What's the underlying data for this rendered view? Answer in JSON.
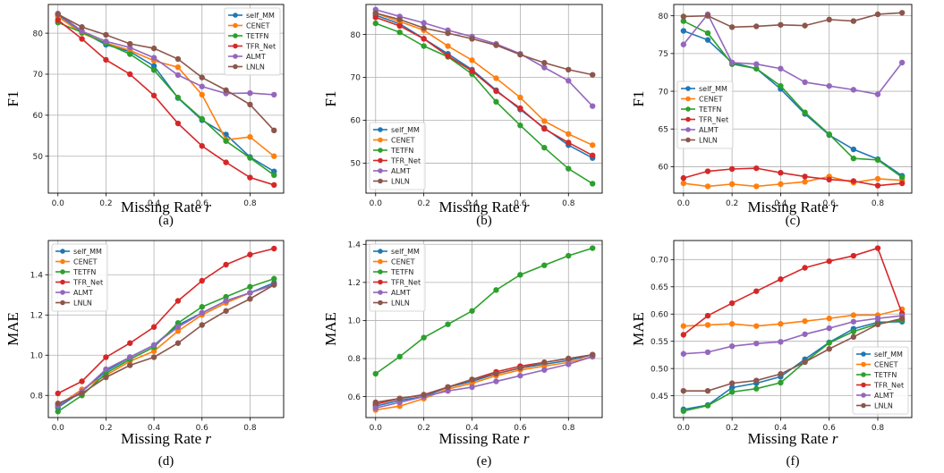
{
  "colors": {
    "self_MM": "#1f77b4",
    "CENET": "#ff7f0e",
    "TETFN": "#2ca02c",
    "TFR_Net": "#d62728",
    "ALMT": "#9467bd",
    "LNLN": "#8c564b"
  },
  "chart_data": [
    {
      "type": "line",
      "caption": "(a)",
      "xlabel": "Missing Rate",
      "xlabel_var": "r",
      "ylabel": "F1",
      "xlim": [
        -0.04,
        0.94
      ],
      "ylim": [
        41,
        87
      ],
      "xticks": [
        0.0,
        0.2,
        0.4,
        0.6,
        0.8
      ],
      "xtick_labels": [
        "0.0",
        "0.2",
        "0.4",
        "0.6",
        "0.8"
      ],
      "yticks": [
        50,
        60,
        70,
        80
      ],
      "ytick_labels": [
        "50",
        "60",
        "70",
        "80"
      ],
      "grid": true,
      "legend": "top-right",
      "x": [
        0.0,
        0.1,
        0.2,
        0.3,
        0.4,
        0.5,
        0.6,
        0.7,
        0.8,
        0.9
      ],
      "series": [
        {
          "name": "self_MM",
          "values": [
            84.5,
            80.3,
            77.2,
            75.5,
            72.0,
            64.2,
            58.8,
            55.3,
            49.8,
            46.3
          ]
        },
        {
          "name": "CENET",
          "values": [
            84.0,
            80.0,
            77.6,
            75.8,
            73.3,
            71.7,
            65.0,
            54.0,
            54.7,
            50.0
          ]
        },
        {
          "name": "TETFN",
          "values": [
            82.6,
            80.2,
            77.5,
            74.9,
            71.0,
            64.3,
            59.1,
            53.7,
            49.6,
            45.4
          ]
        },
        {
          "name": "TFR_Net",
          "values": [
            83.2,
            78.6,
            73.5,
            70.0,
            64.8,
            58.0,
            52.5,
            48.5,
            44.8,
            43.0
          ]
        },
        {
          "name": "ALMT",
          "values": [
            84.8,
            80.5,
            78.0,
            76.5,
            74.0,
            69.8,
            67.0,
            65.3,
            65.4,
            65.0
          ]
        },
        {
          "name": "LNLN",
          "values": [
            84.6,
            81.5,
            79.6,
            77.4,
            76.3,
            73.7,
            69.2,
            66.1,
            62.6,
            56.3
          ]
        }
      ]
    },
    {
      "type": "line",
      "caption": "(b)",
      "xlabel": "Missing Rate",
      "xlabel_var": "r",
      "ylabel": "F1",
      "xlim": [
        -0.04,
        0.94
      ],
      "ylim": [
        43,
        87
      ],
      "xticks": [
        0.0,
        0.2,
        0.4,
        0.6,
        0.8
      ],
      "xtick_labels": [
        "0.0",
        "0.2",
        "0.4",
        "0.6",
        "0.8"
      ],
      "yticks": [
        50,
        60,
        70,
        80
      ],
      "ytick_labels": [
        "50",
        "60",
        "70",
        "80"
      ],
      "grid": true,
      "legend": "bottom-left",
      "x": [
        0.0,
        0.1,
        0.2,
        0.3,
        0.4,
        0.5,
        0.6,
        0.7,
        0.8,
        0.9
      ],
      "series": [
        {
          "name": "self_MM",
          "values": [
            84.5,
            82.5,
            79.0,
            75.5,
            71.8,
            67.0,
            62.5,
            58.2,
            54.2,
            51.2
          ]
        },
        {
          "name": "CENET",
          "values": [
            85.0,
            83.0,
            81.0,
            77.3,
            74.0,
            69.8,
            65.3,
            59.8,
            56.8,
            54.2
          ]
        },
        {
          "name": "TETFN",
          "values": [
            82.6,
            80.5,
            77.3,
            74.8,
            70.8,
            64.3,
            58.8,
            53.6,
            48.7,
            45.2
          ]
        },
        {
          "name": "TFR_Net",
          "values": [
            84.0,
            82.0,
            79.0,
            75.0,
            71.5,
            66.8,
            62.8,
            58.0,
            54.8,
            51.8
          ]
        },
        {
          "name": "ALMT",
          "values": [
            85.8,
            84.2,
            82.7,
            81.0,
            79.5,
            77.8,
            75.5,
            72.3,
            69.2,
            63.3
          ]
        },
        {
          "name": "LNLN",
          "values": [
            85.0,
            83.5,
            81.5,
            80.3,
            79.0,
            77.5,
            75.3,
            73.4,
            71.8,
            70.6
          ]
        }
      ]
    },
    {
      "type": "line",
      "caption": "(c)",
      "xlabel": "Missing Rate",
      "xlabel_var": "r",
      "ylabel": "F1",
      "xlim": [
        -0.04,
        0.94
      ],
      "ylim": [
        56.5,
        81.5
      ],
      "xticks": [
        0.0,
        0.2,
        0.4,
        0.6,
        0.8
      ],
      "xtick_labels": [
        "0.0",
        "0.2",
        "0.4",
        "0.6",
        "0.8"
      ],
      "yticks": [
        60,
        65,
        70,
        75,
        80
      ],
      "ytick_labels": [
        "60",
        "65",
        "70",
        "75",
        "80"
      ],
      "grid": true,
      "legend": "center-left",
      "x": [
        0.0,
        0.1,
        0.2,
        0.3,
        0.4,
        0.5,
        0.6,
        0.7,
        0.8,
        0.9
      ],
      "series": [
        {
          "name": "self_MM",
          "values": [
            78.0,
            76.8,
            73.8,
            73.0,
            70.3,
            67.0,
            64.2,
            62.3,
            61.0,
            58.8
          ]
        },
        {
          "name": "CENET",
          "values": [
            57.8,
            57.4,
            57.7,
            57.4,
            57.7,
            58.0,
            58.7,
            57.9,
            58.4,
            58.2
          ]
        },
        {
          "name": "TETFN",
          "values": [
            79.3,
            77.7,
            73.6,
            73.0,
            70.7,
            67.2,
            64.3,
            61.1,
            60.9,
            58.6
          ]
        },
        {
          "name": "TFR_Net",
          "values": [
            58.5,
            59.4,
            59.7,
            59.8,
            59.2,
            58.7,
            58.3,
            58.1,
            57.5,
            57.8
          ]
        },
        {
          "name": "ALMT",
          "values": [
            76.2,
            80.2,
            73.8,
            73.6,
            73.0,
            71.2,
            70.7,
            70.2,
            69.6,
            73.8
          ]
        },
        {
          "name": "LNLN",
          "values": [
            79.9,
            80.0,
            78.5,
            78.6,
            78.8,
            78.7,
            79.5,
            79.3,
            80.2,
            80.4
          ]
        }
      ]
    },
    {
      "type": "line",
      "caption": "(d)",
      "xlabel": "Missing Rate",
      "xlabel_var": "r",
      "ylabel": "MAE",
      "xlim": [
        -0.04,
        0.94
      ],
      "ylim": [
        0.69,
        1.57
      ],
      "xticks": [
        0.0,
        0.2,
        0.4,
        0.6,
        0.8
      ],
      "xtick_labels": [
        "0.0",
        "0.2",
        "0.4",
        "0.6",
        "0.8"
      ],
      "yticks": [
        0.8,
        1.0,
        1.2,
        1.4
      ],
      "ytick_labels": [
        "0.8",
        "1.0",
        "1.2",
        "1.4"
      ],
      "grid": true,
      "legend": "top-left",
      "x": [
        0.0,
        0.1,
        0.2,
        0.3,
        0.4,
        0.5,
        0.6,
        0.7,
        0.8,
        0.9
      ],
      "series": [
        {
          "name": "self_MM",
          "values": [
            0.74,
            0.82,
            0.92,
            0.99,
            1.05,
            1.15,
            1.21,
            1.27,
            1.31,
            1.36
          ]
        },
        {
          "name": "CENET",
          "values": [
            0.75,
            0.83,
            0.9,
            0.97,
            1.02,
            1.12,
            1.2,
            1.26,
            1.31,
            1.35
          ]
        },
        {
          "name": "TETFN",
          "values": [
            0.72,
            0.8,
            0.91,
            0.98,
            1.04,
            1.16,
            1.24,
            1.29,
            1.34,
            1.38
          ]
        },
        {
          "name": "TFR_Net",
          "values": [
            0.81,
            0.87,
            0.99,
            1.06,
            1.14,
            1.27,
            1.37,
            1.45,
            1.5,
            1.53
          ]
        },
        {
          "name": "ALMT",
          "values": [
            0.75,
            0.82,
            0.93,
            0.99,
            1.05,
            1.14,
            1.21,
            1.27,
            1.31,
            1.35
          ]
        },
        {
          "name": "LNLN",
          "values": [
            0.76,
            0.81,
            0.89,
            0.95,
            0.99,
            1.06,
            1.15,
            1.22,
            1.28,
            1.35
          ]
        }
      ]
    },
    {
      "type": "line",
      "caption": "(e)",
      "xlabel": "Missing Rate",
      "xlabel_var": "r",
      "ylabel": "MAE",
      "xlim": [
        -0.04,
        0.94
      ],
      "ylim": [
        0.49,
        1.42
      ],
      "xticks": [
        0.0,
        0.2,
        0.4,
        0.6,
        0.8
      ],
      "xtick_labels": [
        "0.0",
        "0.2",
        "0.4",
        "0.6",
        "0.8"
      ],
      "yticks": [
        0.6,
        0.8,
        1.0,
        1.2,
        1.4
      ],
      "ytick_labels": [
        "0.6",
        "0.8",
        "1.0",
        "1.2",
        "1.4"
      ],
      "grid": true,
      "legend": "top-left",
      "x": [
        0.0,
        0.1,
        0.2,
        0.3,
        0.4,
        0.5,
        0.6,
        0.7,
        0.8,
        0.9
      ],
      "series": [
        {
          "name": "self_MM",
          "values": [
            0.55,
            0.58,
            0.6,
            0.65,
            0.68,
            0.72,
            0.75,
            0.77,
            0.79,
            0.82
          ]
        },
        {
          "name": "CENET",
          "values": [
            0.53,
            0.55,
            0.59,
            0.64,
            0.67,
            0.71,
            0.74,
            0.76,
            0.78,
            0.81
          ]
        },
        {
          "name": "TETFN",
          "values": [
            0.72,
            0.81,
            0.91,
            0.98,
            1.05,
            1.16,
            1.24,
            1.29,
            1.34,
            1.38
          ]
        },
        {
          "name": "TFR_Net",
          "values": [
            0.56,
            0.59,
            0.61,
            0.65,
            0.69,
            0.73,
            0.76,
            0.78,
            0.8,
            0.82
          ]
        },
        {
          "name": "ALMT",
          "values": [
            0.54,
            0.57,
            0.6,
            0.63,
            0.65,
            0.68,
            0.71,
            0.74,
            0.77,
            0.81
          ]
        },
        {
          "name": "LNLN",
          "values": [
            0.57,
            0.59,
            0.61,
            0.65,
            0.69,
            0.72,
            0.75,
            0.78,
            0.8,
            0.82
          ]
        }
      ]
    },
    {
      "type": "line",
      "caption": "(f)",
      "xlabel": "Missing Rate",
      "xlabel_var": "r",
      "ylabel": "MAE",
      "xlim": [
        -0.04,
        0.94
      ],
      "ylim": [
        0.41,
        0.735
      ],
      "xticks": [
        0.0,
        0.2,
        0.4,
        0.6,
        0.8
      ],
      "xtick_labels": [
        "0.0",
        "0.2",
        "0.4",
        "0.6",
        "0.8"
      ],
      "yticks": [
        0.45,
        0.5,
        0.55,
        0.6,
        0.65,
        0.7
      ],
      "ytick_labels": [
        "0.45",
        "0.50",
        "0.55",
        "0.60",
        "0.65",
        "0.70"
      ],
      "grid": true,
      "legend": "bottom-right",
      "x": [
        0.0,
        0.1,
        0.2,
        0.3,
        0.4,
        0.5,
        0.6,
        0.7,
        0.8,
        0.9
      ],
      "series": [
        {
          "name": "self_MM",
          "values": [
            0.425,
            0.433,
            0.465,
            0.473,
            0.485,
            0.517,
            0.548,
            0.573,
            0.585,
            0.586
          ]
        },
        {
          "name": "CENET",
          "values": [
            0.578,
            0.58,
            0.582,
            0.578,
            0.582,
            0.587,
            0.592,
            0.598,
            0.598,
            0.609
          ]
        },
        {
          "name": "TETFN",
          "values": [
            0.422,
            0.432,
            0.457,
            0.463,
            0.474,
            0.512,
            0.547,
            0.568,
            0.582,
            0.589
          ]
        },
        {
          "name": "TFR_Net",
          "values": [
            0.562,
            0.597,
            0.62,
            0.642,
            0.664,
            0.685,
            0.697,
            0.707,
            0.721,
            0.601
          ]
        },
        {
          "name": "ALMT",
          "values": [
            0.527,
            0.53,
            0.541,
            0.546,
            0.549,
            0.563,
            0.574,
            0.586,
            0.592,
            0.597
          ]
        },
        {
          "name": "LNLN",
          "values": [
            0.459,
            0.459,
            0.473,
            0.478,
            0.49,
            0.512,
            0.536,
            0.558,
            0.581,
            0.592
          ]
        }
      ]
    }
  ]
}
